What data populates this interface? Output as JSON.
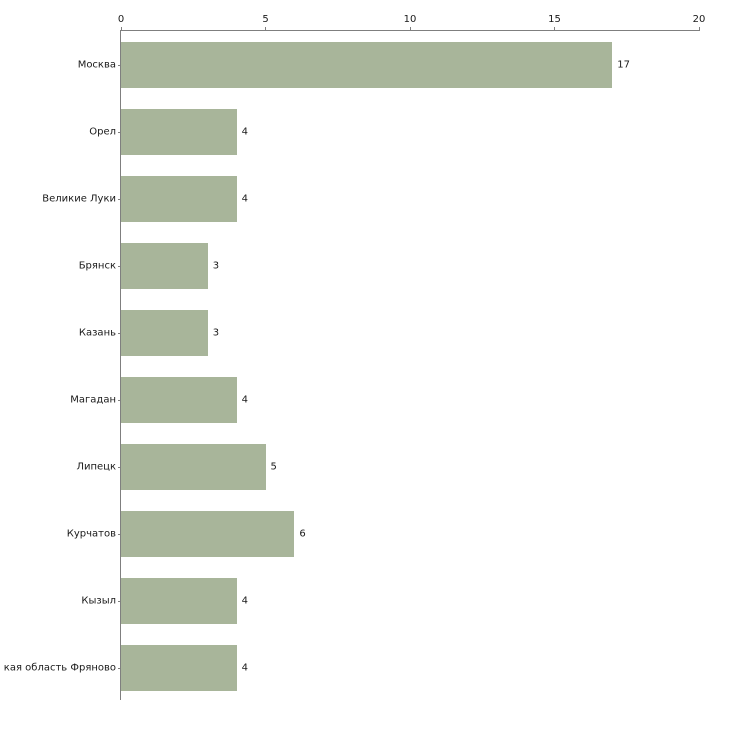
{
  "chart_data": {
    "type": "bar",
    "orientation": "horizontal",
    "title": "",
    "xlabel": "",
    "ylabel": "",
    "categories": [
      "Москва",
      "Орел",
      "Великие Луки",
      "Брянск",
      "Казань",
      "Магадан",
      "Липецк",
      "Курчатов",
      "Кызыл",
      "кая область Фряново"
    ],
    "values": [
      17,
      4,
      4,
      3,
      3,
      4,
      5,
      6,
      4,
      4
    ],
    "xlim": [
      0,
      20
    ],
    "x_ticks": [
      0,
      5,
      10,
      15,
      20
    ],
    "axis_position": "top",
    "grid": false,
    "legend": false,
    "bar_color": "#a8b59a",
    "axis_color": "#7f7f7f",
    "text_color": "#1a1a1a",
    "background": "#ffffff"
  }
}
